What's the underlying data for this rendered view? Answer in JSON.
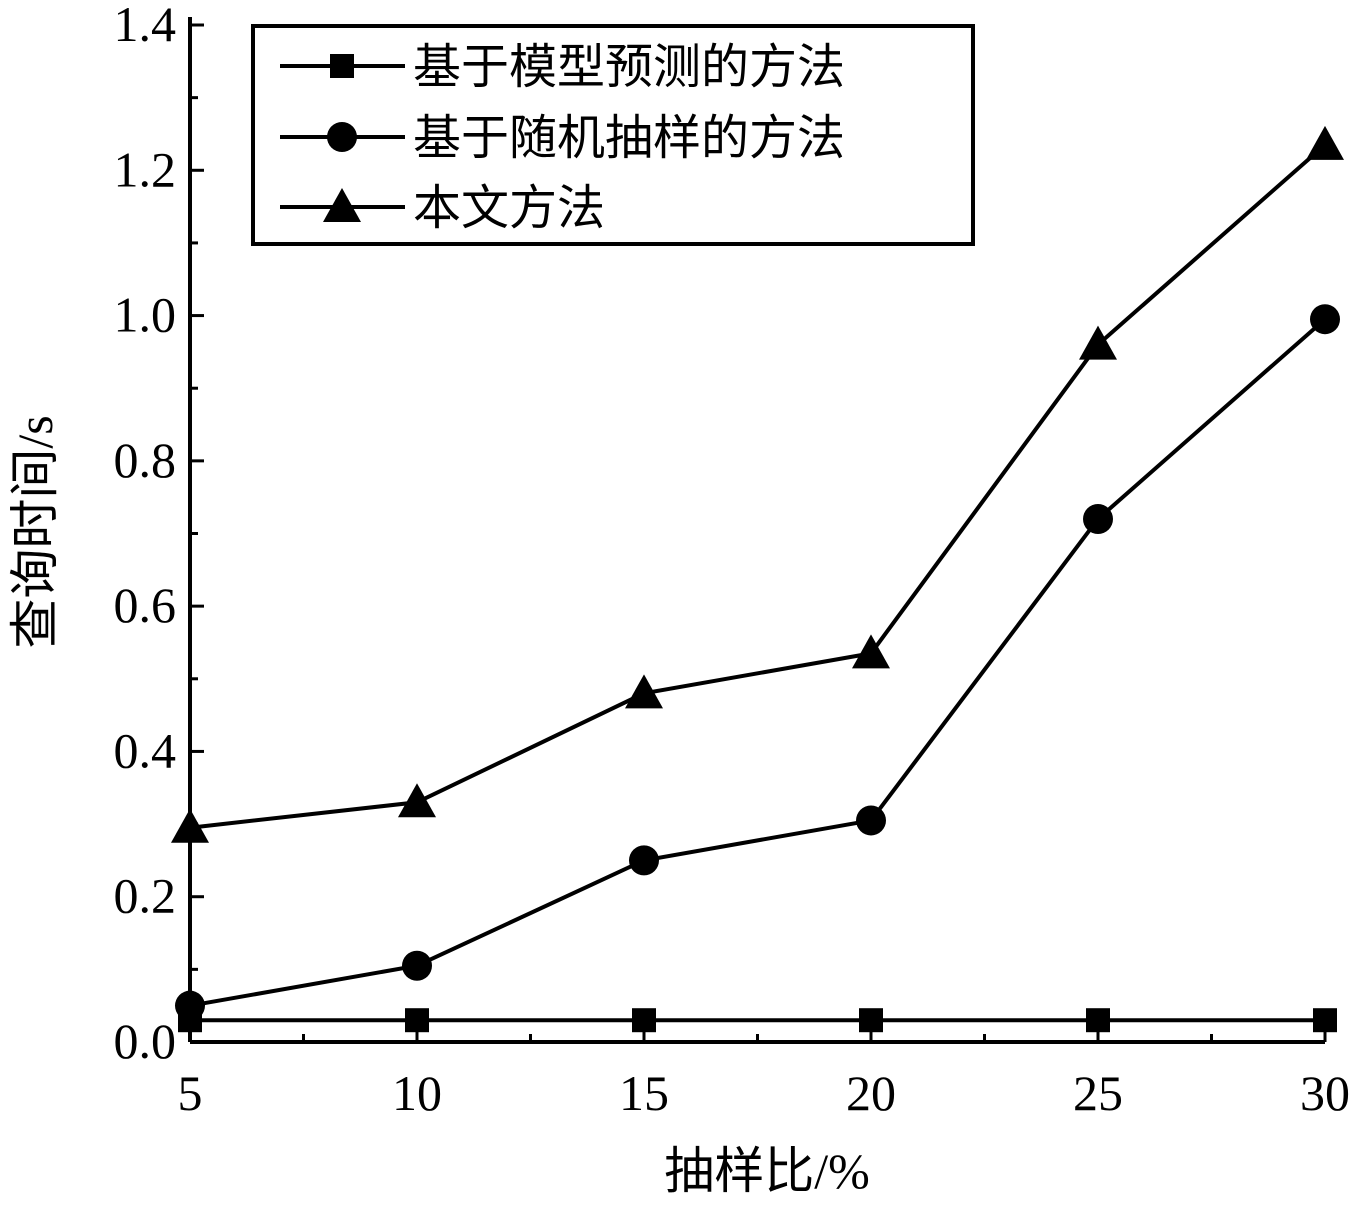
{
  "chart_data": {
    "type": "line",
    "xlabel": "抽样比/%",
    "ylabel": "查询时间/s",
    "x": [
      5,
      10,
      15,
      20,
      25,
      30
    ],
    "xlim": [
      5,
      30
    ],
    "ylim": [
      0,
      1.4
    ],
    "xticks": [
      "5",
      "10",
      "15",
      "20",
      "25",
      "30"
    ],
    "yticks": [
      "0.0",
      "0.2",
      "0.4",
      "0.6",
      "0.8",
      "1.0",
      "1.2",
      "1.4"
    ],
    "grid": false,
    "legend_position": "top-left",
    "series": [
      {
        "name": "基于模型预测的方法",
        "marker": "square",
        "values": [
          0.03,
          0.03,
          0.03,
          0.03,
          0.03,
          0.03
        ]
      },
      {
        "name": "基于随机抽样的方法",
        "marker": "circle",
        "values": [
          0.05,
          0.105,
          0.25,
          0.305,
          0.72,
          0.995
        ]
      },
      {
        "name": "本文方法",
        "marker": "triangle",
        "values": [
          0.295,
          0.33,
          0.48,
          0.535,
          0.96,
          1.235
        ]
      }
    ]
  }
}
